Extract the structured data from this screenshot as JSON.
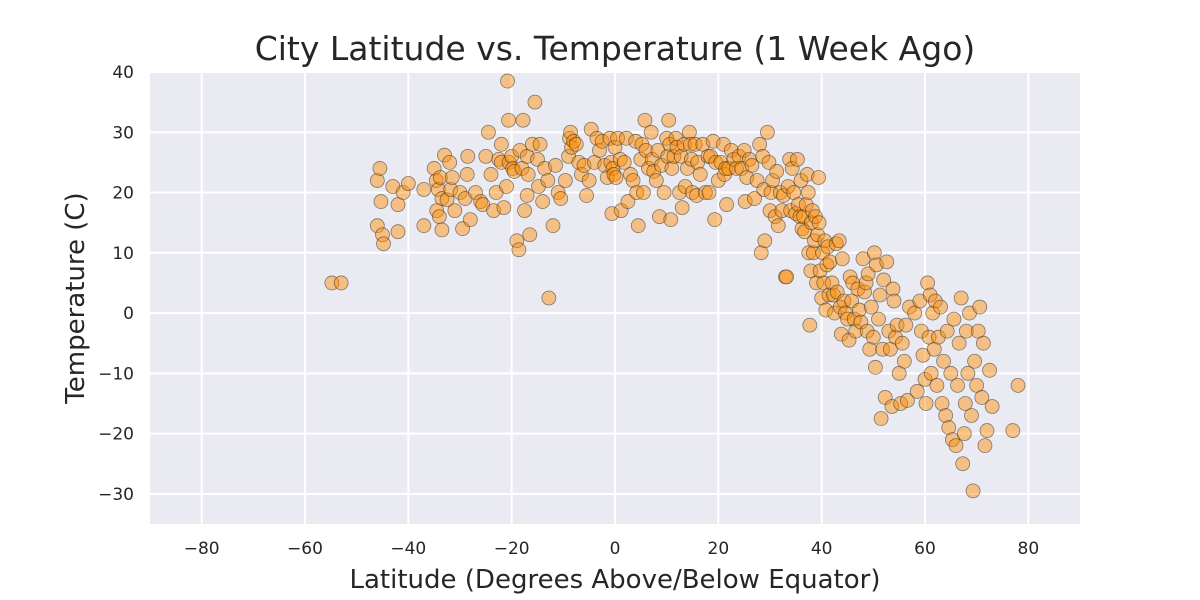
{
  "chart_data": {
    "type": "scatter",
    "title": "City Latitude vs. Temperature (1 Week Ago)",
    "xlabel": "Latitude (Degrees Above/Below Equator)",
    "ylabel": "Temperature (C)",
    "xlim": [
      -90,
      90
    ],
    "ylim": [
      -35,
      40
    ],
    "xticks": [
      -80,
      -60,
      -40,
      -20,
      0,
      20,
      40,
      60,
      80
    ],
    "yticks": [
      -30,
      -20,
      -10,
      0,
      10,
      20,
      30,
      40
    ],
    "grid": true,
    "colors": {
      "background": "#eaeaf2",
      "grid": "#ffffff",
      "marker_fill": "#ff8c00",
      "marker_edge": "#262626"
    },
    "points": [
      [
        -54.8,
        5
      ],
      [
        -53,
        5
      ],
      [
        -46,
        22
      ],
      [
        -45.5,
        24
      ],
      [
        -46,
        14.5
      ],
      [
        -45,
        13
      ],
      [
        -44.8,
        11.5
      ],
      [
        -45.3,
        18.5
      ],
      [
        -43,
        21
      ],
      [
        -42,
        18
      ],
      [
        -42,
        13.5
      ],
      [
        -41,
        20
      ],
      [
        -40,
        21.5
      ],
      [
        -37,
        20.5
      ],
      [
        -37,
        14.5
      ],
      [
        -35,
        24
      ],
      [
        -34.6,
        22
      ],
      [
        -34.2,
        20.5
      ],
      [
        -33.8,
        22.5
      ],
      [
        -33.5,
        19
      ],
      [
        -34.5,
        17
      ],
      [
        -34,
        16
      ],
      [
        -33.5,
        13.8
      ],
      [
        -33,
        26.2
      ],
      [
        -32.5,
        18.8
      ],
      [
        -32,
        25
      ],
      [
        -31.8,
        20.5
      ],
      [
        -31.5,
        22.5
      ],
      [
        -31,
        17
      ],
      [
        -30,
        20
      ],
      [
        -29.5,
        14
      ],
      [
        -29,
        19
      ],
      [
        -28.6,
        23
      ],
      [
        -28.5,
        26
      ],
      [
        -28,
        15.5
      ],
      [
        -27,
        20
      ],
      [
        -26,
        18.5
      ],
      [
        -25.6,
        18
      ],
      [
        -25,
        26
      ],
      [
        -24.5,
        30
      ],
      [
        -24,
        23
      ],
      [
        -23.5,
        17
      ],
      [
        -23,
        20
      ],
      [
        -22.5,
        25.5
      ],
      [
        -22,
        28
      ],
      [
        -22,
        25
      ],
      [
        -21.5,
        17.5
      ],
      [
        -21,
        21
      ],
      [
        -20.8,
        38.5
      ],
      [
        -20.6,
        32
      ],
      [
        -20.5,
        25
      ],
      [
        -20,
        26
      ],
      [
        -19.8,
        24
      ],
      [
        -19.5,
        23.5
      ],
      [
        -19,
        12
      ],
      [
        -18.6,
        10.5
      ],
      [
        -18.4,
        27
      ],
      [
        -18,
        24
      ],
      [
        -17.8,
        32
      ],
      [
        -17.5,
        17
      ],
      [
        -17,
        19.5
      ],
      [
        -17,
        26
      ],
      [
        -16.8,
        23
      ],
      [
        -16.5,
        13
      ],
      [
        -16,
        28
      ],
      [
        -15.5,
        35
      ],
      [
        -15,
        25.5
      ],
      [
        -14.8,
        21
      ],
      [
        -14.5,
        28
      ],
      [
        -14,
        18.5
      ],
      [
        -13.6,
        24
      ],
      [
        -13,
        22
      ],
      [
        -12.8,
        2.5
      ],
      [
        -12,
        14.5
      ],
      [
        -11.5,
        24.5
      ],
      [
        -11,
        20
      ],
      [
        -10.5,
        19
      ],
      [
        -9.6,
        22
      ],
      [
        -9,
        26
      ],
      [
        -8.8,
        29
      ],
      [
        -8.6,
        30
      ],
      [
        -8.4,
        27.5
      ],
      [
        -8,
        28.5
      ],
      [
        -7.5,
        28
      ],
      [
        -7,
        25
      ],
      [
        -6.5,
        23
      ],
      [
        -6,
        24.5
      ],
      [
        -5.5,
        19.5
      ],
      [
        -5,
        22
      ],
      [
        -4.6,
        30.5
      ],
      [
        -4,
        25
      ],
      [
        -3.5,
        29
      ],
      [
        -3,
        27
      ],
      [
        -2.5,
        28.5
      ],
      [
        -2,
        24.5
      ],
      [
        -1.5,
        22.5
      ],
      [
        -1,
        29
      ],
      [
        -0.8,
        25
      ],
      [
        -0.6,
        16.5
      ],
      [
        -0.4,
        24
      ],
      [
        -0.2,
        23
      ],
      [
        0,
        27.5
      ],
      [
        0.2,
        22.5
      ],
      [
        0.5,
        29
      ],
      [
        1,
        25.5
      ],
      [
        1.2,
        17
      ],
      [
        1.8,
        25
      ],
      [
        2.2,
        29
      ],
      [
        2.5,
        18.5
      ],
      [
        3,
        23
      ],
      [
        3.5,
        22
      ],
      [
        4,
        28.5
      ],
      [
        4.2,
        20
      ],
      [
        4.5,
        14.5
      ],
      [
        5,
        25.5
      ],
      [
        5.2,
        28
      ],
      [
        5.5,
        20
      ],
      [
        5.8,
        32
      ],
      [
        6,
        27
      ],
      [
        6.5,
        24
      ],
      [
        7,
        30
      ],
      [
        7.2,
        25.5
      ],
      [
        7.5,
        23.5
      ],
      [
        8,
        22
      ],
      [
        8.3,
        27
      ],
      [
        8.6,
        16
      ],
      [
        9,
        24.5
      ],
      [
        9.5,
        20
      ],
      [
        10,
        29
      ],
      [
        10.2,
        26
      ],
      [
        10.4,
        32
      ],
      [
        10.6,
        28
      ],
      [
        10.8,
        15.5
      ],
      [
        11,
        24
      ],
      [
        11.4,
        26
      ],
      [
        11.8,
        29
      ],
      [
        12,
        27.5
      ],
      [
        12.5,
        20
      ],
      [
        12.8,
        26
      ],
      [
        13,
        17.5
      ],
      [
        13.4,
        28
      ],
      [
        13.6,
        21
      ],
      [
        14,
        24
      ],
      [
        14.4,
        30
      ],
      [
        14.6,
        28
      ],
      [
        14.8,
        25.5
      ],
      [
        15,
        20
      ],
      [
        15.5,
        28
      ],
      [
        15.8,
        19.5
      ],
      [
        16,
        25
      ],
      [
        16.5,
        23
      ],
      [
        17,
        28
      ],
      [
        17.5,
        20
      ],
      [
        18,
        26
      ],
      [
        18.2,
        20
      ],
      [
        18.5,
        26
      ],
      [
        19,
        28.5
      ],
      [
        19.3,
        15.5
      ],
      [
        19.5,
        25
      ],
      [
        20,
        22
      ],
      [
        20.5,
        25
      ],
      [
        21,
        28
      ],
      [
        21.2,
        23
      ],
      [
        21.4,
        24
      ],
      [
        21.6,
        18
      ],
      [
        22,
        24
      ],
      [
        22.5,
        27
      ],
      [
        23,
        25.5
      ],
      [
        23.5,
        24
      ],
      [
        24,
        26
      ],
      [
        24.5,
        24
      ],
      [
        25,
        27
      ],
      [
        25.2,
        18.5
      ],
      [
        25.5,
        22.5
      ],
      [
        26,
        25.5
      ],
      [
        26.5,
        24.5
      ],
      [
        27,
        19
      ],
      [
        27.5,
        22
      ],
      [
        28,
        28
      ],
      [
        28.3,
        10
      ],
      [
        28.6,
        26
      ],
      [
        28.8,
        20.5
      ],
      [
        29,
        12
      ],
      [
        29.5,
        30
      ],
      [
        29.8,
        25
      ],
      [
        30,
        17
      ],
      [
        30.2,
        20
      ],
      [
        30.5,
        22
      ],
      [
        31,
        16
      ],
      [
        31.3,
        23.5
      ],
      [
        31.6,
        14.5
      ],
      [
        32,
        20
      ],
      [
        32.3,
        17
      ],
      [
        32.6,
        19.5
      ],
      [
        33,
        6
      ],
      [
        33.2,
        6
      ],
      [
        33.5,
        21
      ],
      [
        33.8,
        25.5
      ],
      [
        34,
        17
      ],
      [
        34.3,
        24
      ],
      [
        34.6,
        20
      ],
      [
        35,
        16.5
      ],
      [
        35.3,
        25.5
      ],
      [
        35.5,
        18
      ],
      [
        35.8,
        16
      ],
      [
        36,
        22
      ],
      [
        36.2,
        14
      ],
      [
        36.5,
        16
      ],
      [
        36.7,
        13.5
      ],
      [
        37,
        18
      ],
      [
        37.2,
        23
      ],
      [
        37.4,
        20
      ],
      [
        37.5,
        10
      ],
      [
        37.7,
        -2
      ],
      [
        37.9,
        7
      ],
      [
        38,
        15
      ],
      [
        38.2,
        17
      ],
      [
        38.4,
        10
      ],
      [
        38.6,
        12
      ],
      [
        38.8,
        16
      ],
      [
        39,
        5
      ],
      [
        39.2,
        13
      ],
      [
        39.4,
        22.5
      ],
      [
        39.5,
        15
      ],
      [
        39.7,
        7
      ],
      [
        40,
        2.5
      ],
      [
        40.2,
        10
      ],
      [
        40.4,
        5
      ],
      [
        40.6,
        12
      ],
      [
        40.8,
        0.5
      ],
      [
        41,
        8
      ],
      [
        41.2,
        11
      ],
      [
        41.4,
        3
      ],
      [
        41.6,
        8.5
      ],
      [
        42,
        5
      ],
      [
        42.3,
        3
      ],
      [
        42.5,
        0
      ],
      [
        42.8,
        11.5
      ],
      [
        43,
        3.5
      ],
      [
        43.4,
        12
      ],
      [
        43.6,
        1
      ],
      [
        43.8,
        -3.5
      ],
      [
        44,
        9
      ],
      [
        44.3,
        2
      ],
      [
        44.6,
        0
      ],
      [
        45,
        -1
      ],
      [
        45.3,
        -4.5
      ],
      [
        45.5,
        6
      ],
      [
        45.8,
        2
      ],
      [
        46,
        5
      ],
      [
        46.3,
        -1
      ],
      [
        46.6,
        -3
      ],
      [
        47,
        4
      ],
      [
        47.3,
        0.5
      ],
      [
        47.6,
        -1.5
      ],
      [
        48,
        9
      ],
      [
        48.3,
        3.5
      ],
      [
        48.6,
        5
      ],
      [
        48.8,
        -3
      ],
      [
        49,
        6.5
      ],
      [
        49.3,
        -6
      ],
      [
        49.6,
        1
      ],
      [
        50,
        -4
      ],
      [
        50.2,
        10
      ],
      [
        50.4,
        -9
      ],
      [
        50.6,
        8
      ],
      [
        51,
        -1
      ],
      [
        51.3,
        3
      ],
      [
        51.5,
        -17.5
      ],
      [
        51.8,
        -6
      ],
      [
        52,
        5.5
      ],
      [
        52.3,
        -14
      ],
      [
        52.6,
        8.5
      ],
      [
        53,
        -3
      ],
      [
        53.3,
        -6
      ],
      [
        53.6,
        -15.5
      ],
      [
        53.8,
        4
      ],
      [
        54,
        2
      ],
      [
        54.3,
        -4
      ],
      [
        54.6,
        -2
      ],
      [
        55,
        -10
      ],
      [
        55.3,
        -15
      ],
      [
        55.6,
        -5
      ],
      [
        56,
        -8
      ],
      [
        56.3,
        -2
      ],
      [
        56.6,
        -14.5
      ],
      [
        57,
        1
      ],
      [
        58,
        0
      ],
      [
        58.5,
        -13
      ],
      [
        59,
        2
      ],
      [
        59.3,
        -3
      ],
      [
        59.6,
        -7
      ],
      [
        60,
        -11
      ],
      [
        60.2,
        -15
      ],
      [
        60.5,
        5
      ],
      [
        60.8,
        -4
      ],
      [
        61,
        3
      ],
      [
        61.2,
        -10
      ],
      [
        61.5,
        0
      ],
      [
        61.8,
        -6
      ],
      [
        62,
        2
      ],
      [
        62.3,
        -12
      ],
      [
        62.6,
        -4
      ],
      [
        63,
        1
      ],
      [
        63.3,
        -15
      ],
      [
        63.6,
        -8
      ],
      [
        64,
        -17
      ],
      [
        64.3,
        -3
      ],
      [
        64.6,
        -19
      ],
      [
        65,
        -10
      ],
      [
        65.3,
        -21
      ],
      [
        65.6,
        -1
      ],
      [
        66,
        -22
      ],
      [
        66.3,
        -12
      ],
      [
        66.6,
        -5
      ],
      [
        67,
        2.5
      ],
      [
        67.3,
        -25
      ],
      [
        67.6,
        -20
      ],
      [
        67.8,
        -15
      ],
      [
        68,
        -3
      ],
      [
        68.3,
        -10
      ],
      [
        68.6,
        0
      ],
      [
        69,
        -17
      ],
      [
        69.3,
        -29.5
      ],
      [
        69.6,
        -8
      ],
      [
        70,
        -12
      ],
      [
        70.3,
        -3
      ],
      [
        70.6,
        1
      ],
      [
        71,
        -14
      ],
      [
        71.3,
        -5
      ],
      [
        71.6,
        -22
      ],
      [
        72,
        -19.5
      ],
      [
        72.5,
        -9.5
      ],
      [
        73,
        -15.5
      ],
      [
        77,
        -19.5
      ],
      [
        78,
        -12
      ]
    ]
  }
}
